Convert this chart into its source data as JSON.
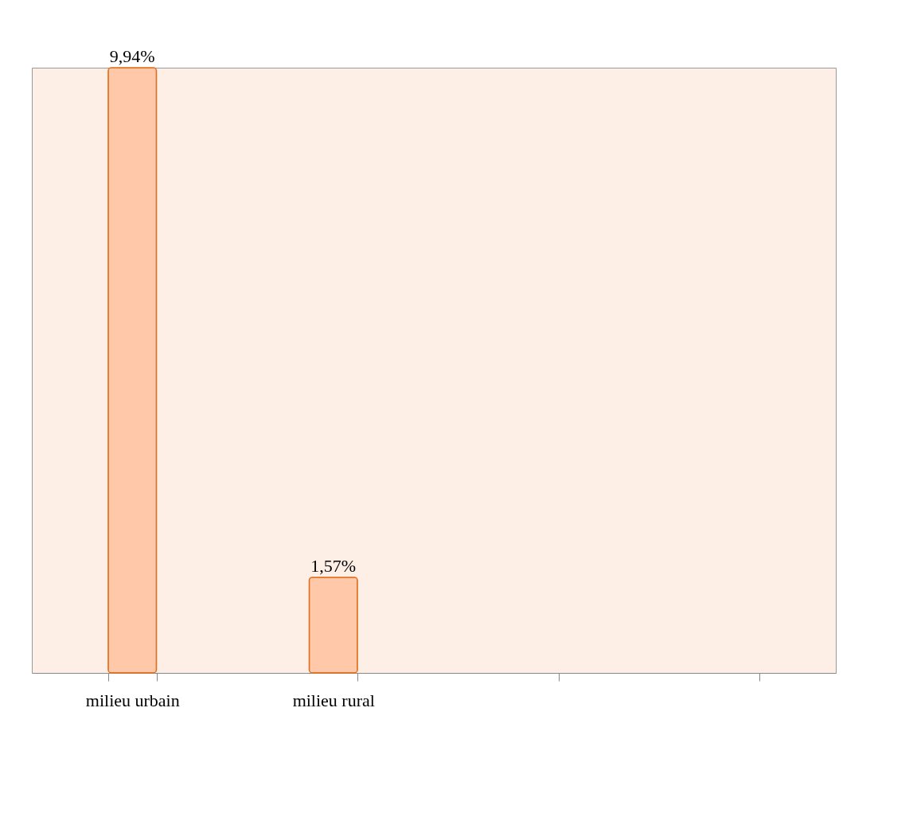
{
  "chart_data": {
    "type": "bar",
    "categories": [
      "milieu urbain",
      "milieu rural",
      null,
      null
    ],
    "values": [
      9.94,
      1.57,
      null,
      null
    ],
    "value_labels": [
      "9,94%",
      "1,57%",
      null,
      null
    ],
    "color": "#ffc8a8",
    "grid": false
  }
}
